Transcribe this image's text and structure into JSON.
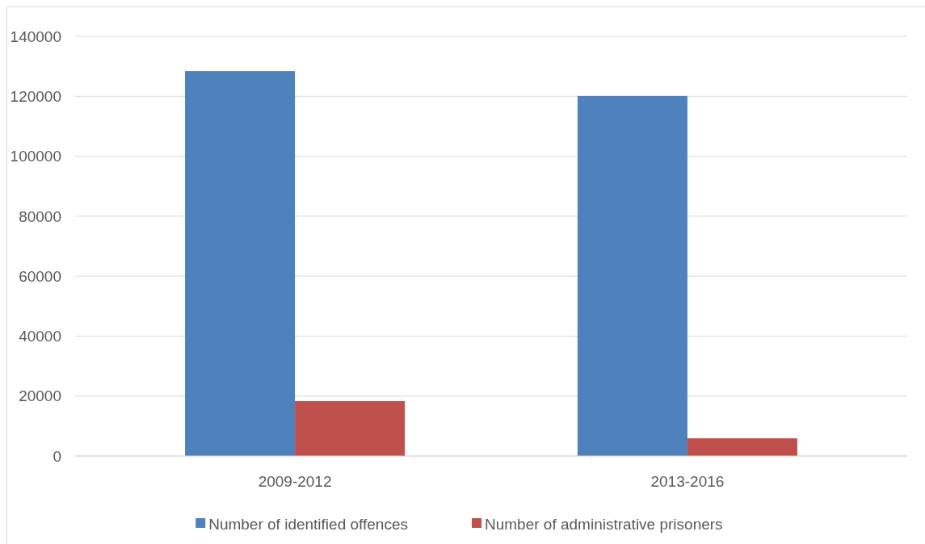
{
  "chart_data": {
    "type": "bar",
    "categories": [
      "2009-2012",
      "2013-2016"
    ],
    "series": [
      {
        "name": "Number of identified offences",
        "color": "#4f81bd",
        "values": [
          128400,
          120100
        ]
      },
      {
        "name": "Number of administrative prisoners",
        "color": "#c0504d",
        "values": [
          18300,
          5900
        ]
      }
    ],
    "ylim": [
      0,
      140000
    ],
    "yticks": [
      0,
      20000,
      40000,
      60000,
      80000,
      100000,
      120000,
      140000
    ],
    "grid": "y",
    "legend": "bottom"
  }
}
